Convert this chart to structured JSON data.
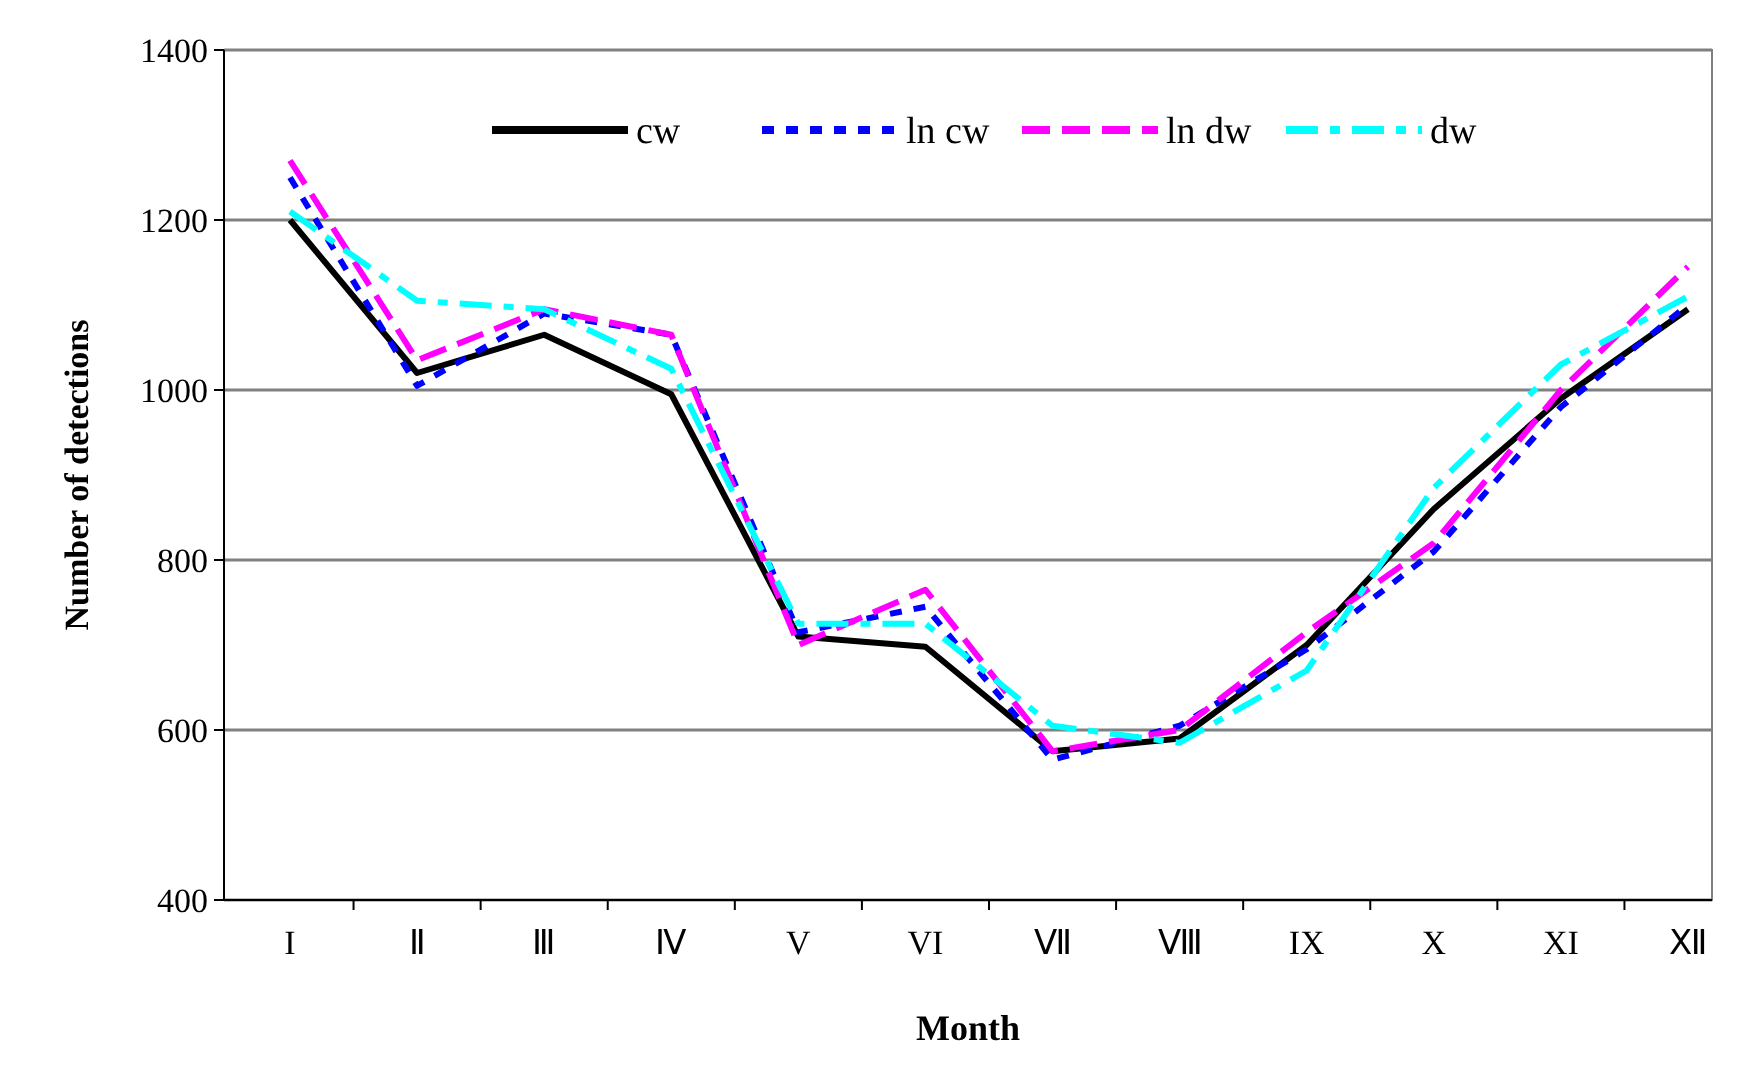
{
  "chart_data": {
    "type": "line",
    "xlabel": "Month",
    "ylabel": "Number of detections",
    "categories": [
      "I",
      "Ⅱ",
      "Ⅲ",
      "Ⅳ",
      "V",
      "VI",
      "Ⅶ",
      "Ⅷ",
      "IX",
      "X",
      "XI",
      "Ⅻ"
    ],
    "series": [
      {
        "name": "cw",
        "color": "#000000",
        "line_style": "solid",
        "values": [
          1200,
          1020,
          1065,
          995,
          710,
          698,
          575,
          590,
          700,
          860,
          990,
          1095
        ]
      },
      {
        "name": "ln cw",
        "color": "#0000ff",
        "line_style": "dotted",
        "values": [
          1250,
          1005,
          1090,
          1065,
          715,
          745,
          565,
          605,
          695,
          810,
          980,
          1100
        ]
      },
      {
        "name": "ln dw",
        "color": "#ff00ff",
        "line_style": "dashed",
        "values": [
          1270,
          1035,
          1095,
          1065,
          700,
          765,
          575,
          600,
          715,
          820,
          1000,
          1145
        ]
      },
      {
        "name": "dw",
        "color": "#00ffff",
        "line_style": "dashdot",
        "values": [
          1210,
          1105,
          1095,
          1025,
          725,
          725,
          605,
          585,
          670,
          885,
          1030,
          1110
        ]
      }
    ],
    "ylim": [
      400,
      1400
    ],
    "yticks": [
      400,
      600,
      800,
      1000,
      1200,
      1400
    ],
    "grid": "y",
    "legend": "top right"
  }
}
